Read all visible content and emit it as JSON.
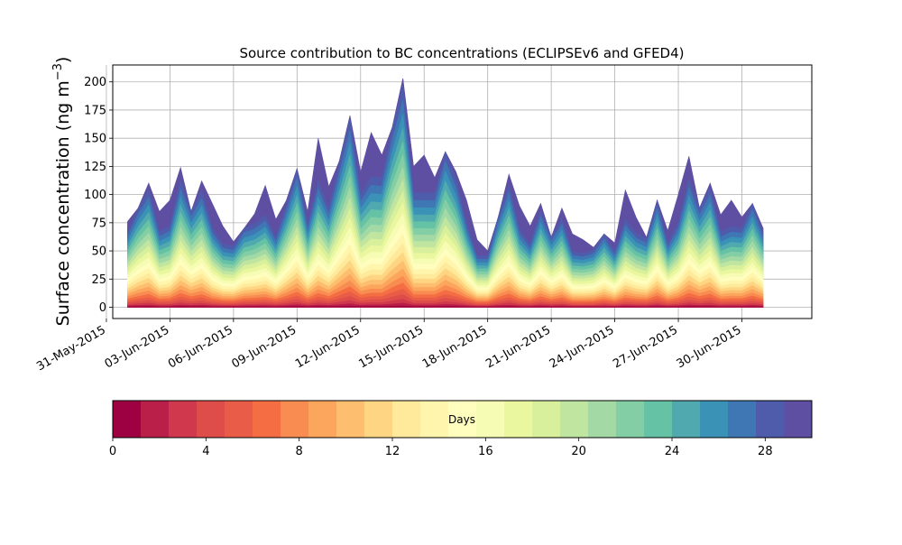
{
  "chart_data": {
    "type": "area",
    "title": "Source contribution to BC concentrations (ECLIPSEv6 and GFED4)",
    "xlabel": "",
    "ylabel_prefix": "Surface concentration (ng m",
    "ylabel_exp": "−3",
    "ylabel_suffix": ")",
    "xlim": [
      0.3,
      33.3
    ],
    "ylim": [
      -10,
      215
    ],
    "x_ticks": [
      {
        "x": 0,
        "label": "31-May-2015"
      },
      {
        "x": 3,
        "label": "03-Jun-2015"
      },
      {
        "x": 6,
        "label": "06-Jun-2015"
      },
      {
        "x": 9,
        "label": "09-Jun-2015"
      },
      {
        "x": 12,
        "label": "12-Jun-2015"
      },
      {
        "x": 15,
        "label": "15-Jun-2015"
      },
      {
        "x": 18,
        "label": "18-Jun-2015"
      },
      {
        "x": 21,
        "label": "21-Jun-2015"
      },
      {
        "x": 24,
        "label": "24-Jun-2015"
      },
      {
        "x": 27,
        "label": "27-Jun-2015"
      },
      {
        "x": 30,
        "label": "30-Jun-2015"
      }
    ],
    "y_ticks": [
      0,
      25,
      50,
      75,
      100,
      125,
      150,
      175,
      200
    ],
    "grid": true,
    "x_unit": "days since 31-May-2015 00:00",
    "x": [
      1.0,
      1.5,
      2.0,
      2.5,
      3.0,
      3.5,
      4.0,
      4.5,
      5.0,
      5.5,
      6.0,
      6.5,
      7.0,
      7.5,
      8.0,
      8.5,
      9.0,
      9.5,
      10.0,
      10.5,
      11.0,
      11.5,
      12.0,
      12.5,
      13.0,
      13.5,
      14.0,
      14.5,
      15.0,
      15.5,
      16.0,
      16.5,
      17.0,
      17.5,
      18.0,
      18.5,
      19.0,
      19.5,
      20.0,
      20.5,
      21.0,
      21.5,
      22.0,
      22.5,
      23.0,
      23.5,
      24.0,
      24.5,
      25.0,
      25.5,
      26.0,
      26.5,
      27.0,
      27.5,
      28.0,
      28.5,
      29.0,
      29.5,
      30.0,
      30.5,
      31.0
    ],
    "total": [
      76,
      88,
      110,
      85,
      95,
      124,
      85,
      112,
      92,
      72,
      58,
      70,
      83,
      108,
      78,
      95,
      123,
      85,
      150,
      107,
      130,
      170,
      120,
      155,
      135,
      160,
      203,
      125,
      135,
      115,
      138,
      120,
      95,
      60,
      50,
      80,
      118,
      90,
      72,
      92,
      62,
      88,
      65,
      60,
      53,
      65,
      57,
      104,
      80,
      62,
      95,
      68,
      100,
      134,
      88,
      110,
      82,
      95,
      80,
      92,
      70
    ],
    "source_age_days": {
      "min": 0,
      "max": 30,
      "step": 1
    },
    "colorbar": {
      "label": "Days",
      "ticks": [
        0,
        4,
        8,
        12,
        16,
        20,
        24,
        28
      ],
      "colors": [
        "#9e0142",
        "#b91f48",
        "#d0384d",
        "#de4d4a",
        "#e95c47",
        "#f46d43",
        "#f88c51",
        "#fca55d",
        "#fdbe6f",
        "#fed683",
        "#feea9a",
        "#fff5ac",
        "#fffebe",
        "#f7fcb4",
        "#eaf79e",
        "#d8ef9b",
        "#bfe5a0",
        "#a2d9a4",
        "#84cea5",
        "#66c2a5",
        "#50a9af",
        "#3a92b7",
        "#3e77b4",
        "#4e5cab",
        "#5e4fa2",
        "#5e4fa2"
      ]
    }
  }
}
